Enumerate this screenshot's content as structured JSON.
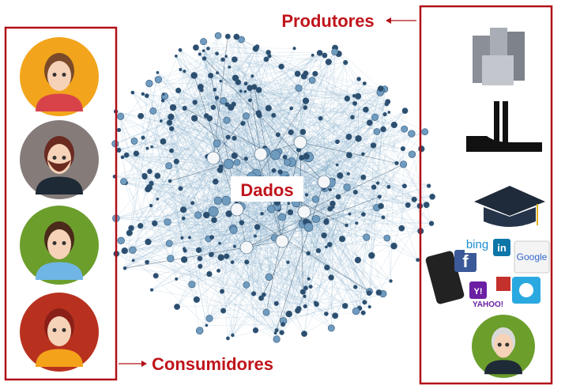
{
  "labels": {
    "producers": "Produtores",
    "consumers": "Consumidores",
    "data": "Dados"
  },
  "logos": {
    "bing": "bing",
    "linkedin": "in",
    "google": "Google",
    "facebook": "f",
    "yahoo": "YAHOO!",
    "yahoo_icon": "Y!"
  }
}
